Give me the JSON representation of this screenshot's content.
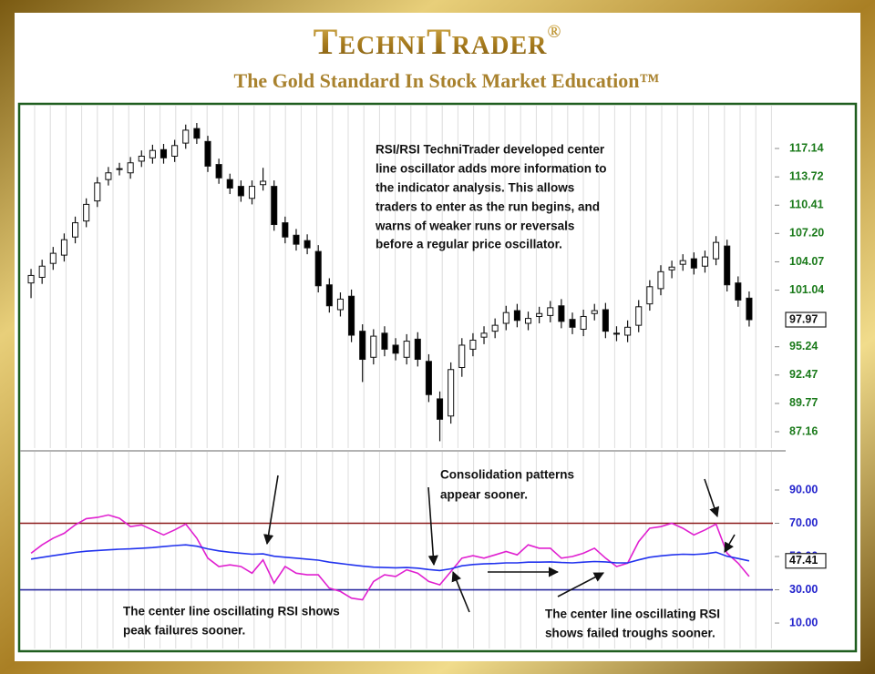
{
  "header": {
    "brand": "TechniTrader",
    "brand_mark": "®",
    "tagline": "The Gold Standard In Stock Market Education™"
  },
  "chart_data": [
    {
      "type": "candlestick",
      "log_scale": true,
      "grid": "vertical",
      "up_color": "#ffffff",
      "down_color": "#000000",
      "axis_color": "#1a7a1a",
      "ylim": [
        85.68,
        122.03
      ],
      "yticks": [
        117.14,
        113.72,
        110.41,
        {
          "value": 107.2,
          "label": "107.20"
        },
        104.07,
        101.04,
        95.24,
        92.47,
        89.77,
        87.16
      ],
      "last_value": 97.97,
      "annotation": [
        "RSI/RSI TechniTrader developed center",
        "line oscillator adds more information to",
        "the indicator analysis. This allows",
        "traders to enter as the run begins, and",
        "warns of weaker runs or reversals",
        "before a regular price oscillator."
      ],
      "open": [
        101.8,
        102.4,
        103.9,
        104.8,
        106.8,
        108.6,
        110.9,
        113.4,
        114.6,
        114.2,
        115.6,
        116.0,
        117.0,
        116.2,
        117.8,
        119.6,
        118.0,
        115.2,
        113.4,
        112.6,
        111.2,
        112.8,
        112.6,
        108.4,
        107.0,
        106.4,
        105.2,
        101.6,
        99.0,
        100.4,
        96.8,
        94.2,
        96.6,
        95.4,
        94.2,
        96.0,
        93.8,
        90.2,
        88.6,
        93.2,
        95.0,
        96.2,
        96.8,
        97.6,
        98.9,
        97.6,
        98.3,
        98.4,
        99.4,
        98.0,
        97.0,
        98.6,
        99.0,
        96.6,
        96.4,
        97.4,
        99.6,
        101.2,
        103.2,
        103.8,
        104.4,
        103.6,
        104.4,
        105.8,
        101.8,
        100.2
      ],
      "high": [
        103.3,
        104.3,
        105.7,
        107.2,
        109.1,
        111.2,
        113.7,
        114.9,
        115.4,
        116.1,
        116.9,
        117.6,
        117.7,
        118.2,
        120.1,
        120.3,
        118.7,
        115.9,
        114.1,
        113.3,
        113.3,
        114.8,
        113.3,
        109.1,
        107.7,
        107.1,
        105.9,
        102.3,
        100.8,
        101.1,
        97.5,
        97.0,
        97.3,
        96.1,
        96.5,
        96.7,
        94.5,
        90.9,
        93.7,
        96.1,
        96.6,
        97.3,
        98.1,
        99.4,
        99.6,
        98.8,
        99.3,
        99.9,
        100.1,
        98.7,
        99.0,
        99.6,
        99.7,
        97.3,
        97.9,
        100.0,
        102.1,
        103.7,
        104.2,
        104.9,
        105.1,
        105.3,
        106.9,
        106.5,
        102.5,
        100.9
      ],
      "low": [
        100.2,
        101.7,
        103.2,
        104.1,
        106.1,
        107.9,
        110.2,
        112.7,
        113.9,
        113.5,
        114.9,
        115.3,
        115.3,
        115.5,
        117.1,
        117.7,
        114.3,
        112.9,
        111.7,
        110.8,
        110.5,
        112.1,
        107.5,
        106.1,
        105.3,
        104.9,
        100.8,
        98.7,
        98.3,
        95.7,
        91.8,
        93.5,
        94.3,
        93.9,
        93.5,
        93.3,
        89.9,
        86.3,
        87.9,
        92.3,
        94.3,
        95.5,
        96.1,
        96.9,
        97.2,
        96.9,
        97.6,
        97.7,
        97.1,
        96.5,
        96.3,
        97.9,
        96.1,
        95.8,
        95.7,
        96.7,
        98.9,
        100.5,
        102.3,
        103.1,
        102.7,
        102.9,
        103.7,
        100.9,
        99.3,
        97.27
      ],
      "close": [
        102.6,
        103.6,
        105.0,
        106.5,
        108.4,
        110.5,
        113.0,
        114.2,
        114.7,
        115.4,
        116.2,
        116.9,
        116.0,
        117.5,
        119.4,
        118.4,
        115.0,
        113.6,
        112.4,
        111.5,
        112.6,
        113.2,
        108.2,
        106.8,
        106.0,
        105.6,
        101.5,
        99.4,
        100.1,
        96.4,
        94.0,
        96.3,
        95.0,
        94.6,
        95.8,
        94.0,
        90.6,
        88.3,
        93.0,
        95.4,
        95.9,
        96.6,
        97.4,
        98.7,
        97.9,
        98.1,
        98.6,
        99.2,
        97.8,
        97.2,
        98.3,
        98.9,
        96.8,
        96.5,
        97.2,
        99.3,
        101.4,
        103.0,
        103.5,
        104.2,
        103.4,
        104.6,
        106.2,
        101.6,
        100.0,
        97.97
      ]
    },
    {
      "type": "line",
      "grid": "vertical",
      "axis_color": "#2222cc",
      "ylim": [
        -5.3,
        110.8
      ],
      "yticks": [
        {
          "value": 90,
          "label": "90.00"
        },
        {
          "value": 70,
          "label": "70.00"
        },
        {
          "value": 50,
          "label": "50.00"
        },
        {
          "value": 30,
          "label": "30.00"
        },
        {
          "value": 10,
          "label": "10.00"
        }
      ],
      "reference_lines": [
        {
          "value": 70,
          "color": "#8b1a1a"
        },
        {
          "value": 30,
          "color": "#2a2aa0"
        }
      ],
      "last_value": 47.41,
      "annotations": [
        [
          "Consolidation patterns",
          "appear sooner."
        ],
        [
          "The center line oscillating RSI shows",
          "peak failures sooner."
        ],
        [
          "The center line oscillating RSI",
          "shows failed troughs sooner."
        ]
      ],
      "series": [
        {
          "color": "#e020d0",
          "values": [
            52,
            57,
            61,
            64,
            69,
            72.8,
            73.5,
            75,
            73,
            68,
            69,
            66,
            63,
            66,
            69.5,
            61,
            49,
            44,
            45,
            44,
            40,
            48,
            34,
            44,
            40,
            39,
            39,
            31,
            29,
            25,
            24,
            35,
            39,
            38,
            42,
            40,
            35,
            33,
            41,
            49,
            50.5,
            49,
            51,
            53,
            51,
            57,
            55,
            55,
            49,
            50,
            52,
            55,
            49,
            44,
            46,
            59,
            67,
            68,
            70,
            67,
            63,
            66,
            69.5,
            52,
            46,
            38
          ]
        },
        {
          "color": "#2233ee",
          "values": [
            48.5,
            49.5,
            50.5,
            51.5,
            52.5,
            53.2,
            53.6,
            54,
            54.4,
            54.6,
            55,
            55.4,
            56,
            56.6,
            57,
            56.2,
            54.6,
            53.4,
            52.6,
            52,
            51.4,
            51.6,
            50.2,
            49.6,
            49,
            48.4,
            47.8,
            46.6,
            45.8,
            45,
            44.2,
            43.6,
            43.4,
            43.2,
            43.4,
            43,
            42.2,
            41.6,
            42.6,
            44.4,
            45.2,
            45.6,
            45.8,
            46.2,
            46.2,
            46.6,
            46.6,
            46.8,
            46.4,
            46.2,
            46.6,
            47,
            46.8,
            46.2,
            46.2,
            48,
            49.6,
            50.4,
            51,
            51.4,
            51.2,
            51.6,
            52.6,
            50.2,
            48.8,
            47.41
          ]
        }
      ]
    }
  ]
}
